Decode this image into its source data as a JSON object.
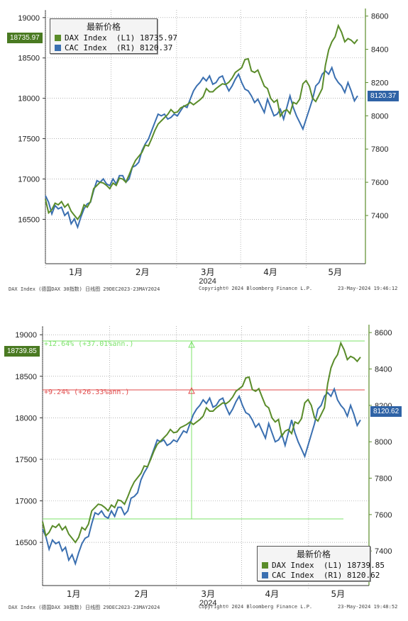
{
  "colors": {
    "dax": "#5a8c2a",
    "cac": "#3a6fb0",
    "up_pct": "#7ce36a",
    "dn_pct": "#e04a4a",
    "grid": "#888888",
    "axis": "#5a8c2a"
  },
  "chart_data": [
    {
      "type": "line",
      "xlabel": "2024",
      "x_ticks": [
        "1月",
        "2月",
        "3月",
        "4月",
        "5月"
      ],
      "left_axis": {
        "ticks": [
          16500,
          17000,
          17500,
          18000,
          18500,
          19000
        ],
        "ylim": [
          15950,
          19060
        ]
      },
      "right_axis": {
        "ticks": [
          7400,
          7600,
          7800,
          8000,
          8200,
          8400,
          8600
        ],
        "ylim": [
          7110,
          8620
        ]
      },
      "legend": {
        "title": "最新价格",
        "placement": "top-left",
        "entries": [
          {
            "name": "DAX Index  (L1)",
            "value": "18735.97"
          },
          {
            "name": "CAC Index  (R1)",
            "value": "8120.37"
          }
        ]
      },
      "last_tags": {
        "left": "18735.97",
        "right": "8120.37"
      },
      "footer": {
        "left": "DAX Index (德国DAX 30指数)  日线图  29DEC2023-23MAY2024",
        "mid": "Copyright© 2024 Bloomberg Finance L.P.",
        "right": "23-May-2024 19:46:12"
      }
    },
    {
      "type": "line",
      "xlabel": "2024",
      "x_ticks": [
        "1月",
        "2月",
        "3月",
        "4月",
        "5月"
      ],
      "left_axis": {
        "ticks": [
          16500,
          17000,
          17500,
          18000,
          18500,
          19000
        ],
        "ylim": [
          15980,
          19070
        ]
      },
      "right_axis": {
        "ticks": [
          7400,
          7600,
          7800,
          8000,
          8200,
          8400,
          8600
        ],
        "ylim": [
          7210,
          8620
        ]
      },
      "legend": {
        "title": "最新价格",
        "placement": "bottom-right",
        "entries": [
          {
            "name": "DAX Index  (L1)",
            "value": "18739.85"
          },
          {
            "name": "CAC Index  (R1)",
            "value": "8120.62"
          }
        ]
      },
      "last_tags": {
        "left": "18739.85",
        "right": "8120.62"
      },
      "annotations": [
        {
          "text": "+12.64% (+37.01%ann.)"
        },
        {
          "text": "+9.24% (+26.33%ann.)"
        }
      ],
      "footer": {
        "left": "DAX Index (德国DAX 30指数)  日线图  29DEC2023-23MAY2024",
        "mid": "Copyright© 2024 Bloomberg Finance L.P.",
        "right": "23-May-2024 19:48:52"
      }
    }
  ],
  "series": {
    "dax": [
      16750,
      16580,
      16620,
      16700,
      16680,
      16720,
      16650,
      16690,
      16600,
      16550,
      16500,
      16560,
      16680,
      16650,
      16720,
      16880,
      16920,
      16960,
      16950,
      16920,
      16880,
      16950,
      16920,
      17010,
      17000,
      16960,
      17050,
      17150,
      17230,
      17280,
      17330,
      17420,
      17410,
      17500,
      17600,
      17680,
      17720,
      17760,
      17800,
      17860,
      17820,
      17830,
      17880,
      17900,
      17920,
      17950,
      17920,
      17950,
      17980,
      18020,
      18120,
      18080,
      18080,
      18120,
      18150,
      18180,
      18170,
      18200,
      18250,
      18320,
      18350,
      18380,
      18480,
      18490,
      18340,
      18320,
      18350,
      18250,
      18150,
      18120,
      18000,
      17950,
      17980,
      17780,
      17840,
      17860,
      17810,
      17950,
      17930,
      17990,
      18180,
      18220,
      18150,
      18000,
      17960,
      18040,
      18120,
      18410,
      18600,
      18700,
      18760,
      18900,
      18820,
      18700,
      18740,
      18720,
      18680,
      18730
    ],
    "cac": [
      7520,
      7480,
      7410,
      7460,
      7440,
      7450,
      7400,
      7420,
      7350,
      7380,
      7330,
      7390,
      7440,
      7470,
      7480,
      7550,
      7610,
      7600,
      7620,
      7590,
      7580,
      7620,
      7590,
      7640,
      7640,
      7600,
      7620,
      7690,
      7700,
      7720,
      7790,
      7830,
      7860,
      7910,
      7960,
      8010,
      8000,
      8010,
      7980,
      7990,
      8010,
      8000,
      8030,
      8060,
      8050,
      8100,
      8150,
      8180,
      8200,
      8230,
      8210,
      8240,
      8190,
      8200,
      8230,
      8240,
      8190,
      8150,
      8180,
      8220,
      8250,
      8200,
      8160,
      8150,
      8120,
      8080,
      8100,
      8060,
      8020,
      8100,
      8050,
      8000,
      8010,
      8040,
      7980,
      8050,
      8120,
      8050,
      8000,
      7960,
      7920,
      7980,
      8040,
      8100,
      8180,
      8200,
      8250,
      8270,
      8250,
      8290,
      8230,
      8200,
      8180,
      8140,
      8200,
      8150,
      8090,
      8120
    ]
  }
}
